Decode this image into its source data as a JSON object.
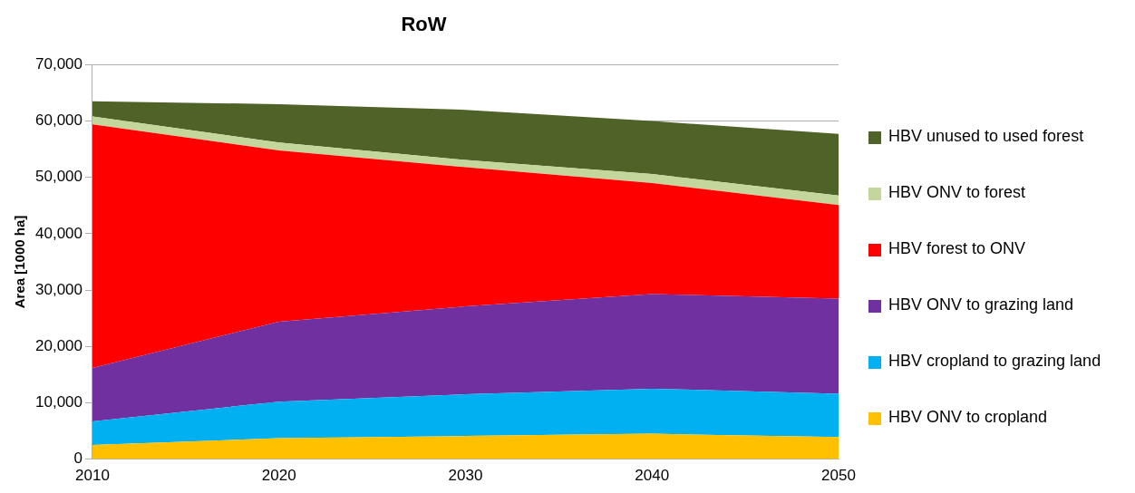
{
  "chart_data": {
    "type": "area",
    "title": "RoW",
    "ylabel": "Area [1000 ha]",
    "stacked": true,
    "x": [
      2010,
      2020,
      2030,
      2040,
      2050
    ],
    "xlim": [
      2010,
      2050
    ],
    "xticks": [
      2010,
      2020,
      2030,
      2040,
      2050
    ],
    "ylim": [
      0,
      70000
    ],
    "yticks": [
      {
        "value": 0,
        "label": "0"
      },
      {
        "value": 10000,
        "label": "10,000"
      },
      {
        "value": 20000,
        "label": "20,000"
      },
      {
        "value": 30000,
        "label": "30,000"
      },
      {
        "value": 40000,
        "label": "40,000"
      },
      {
        "value": 50000,
        "label": "50,000"
      },
      {
        "value": 60000,
        "label": "60,000"
      },
      {
        "value": 70000,
        "label": "70,000"
      }
    ],
    "grid": "y",
    "legend": "right",
    "series": [
      {
        "name": "HBV ONV to cropland",
        "color": "#ffc000",
        "values": [
          2500,
          3700,
          4100,
          4500,
          3900
        ]
      },
      {
        "name": "HBV cropland to grazing land",
        "color": "#00b0f0",
        "values": [
          4200,
          6500,
          7400,
          8000,
          7700
        ]
      },
      {
        "name": "HBV ONV to grazing land",
        "color": "#7030a0",
        "values": [
          9500,
          14200,
          15600,
          16800,
          16900
        ]
      },
      {
        "name": "HBV forest to ONV",
        "color": "#ff0000",
        "values": [
          43200,
          30400,
          24700,
          19700,
          16600
        ]
      },
      {
        "name": "HBV ONV to forest",
        "color": "#c3d69b",
        "values": [
          1400,
          1400,
          1300,
          1600,
          1700
        ]
      },
      {
        "name": "HBV unused to used forest",
        "color": "#4f6228",
        "values": [
          2700,
          6800,
          8900,
          9400,
          10900
        ]
      }
    ]
  }
}
